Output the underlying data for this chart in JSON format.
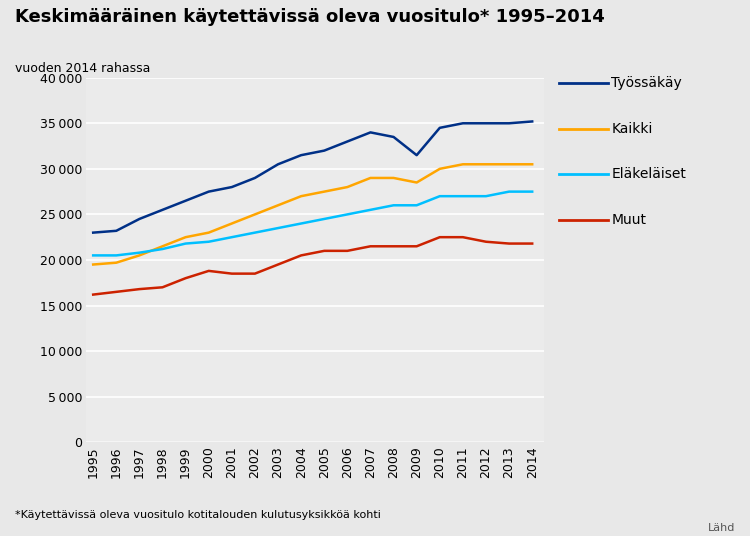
{
  "title": "Keskimääräinen käytettävissä oleva vuositulo* 1995–2014",
  "subtitle": "vuoden 2014 rahassa",
  "footnote": "*Käytettävissä oleva vuositulo kotitalouden kulutusyksikköä kohti",
  "source": "Lähd",
  "years": [
    1995,
    1996,
    1997,
    1998,
    1999,
    2000,
    2001,
    2002,
    2003,
    2004,
    2005,
    2006,
    2007,
    2008,
    2009,
    2010,
    2011,
    2012,
    2013,
    2014
  ],
  "series": [
    {
      "name": "Työssäkäy",
      "color": "#003087",
      "values": [
        23000,
        23200,
        24500,
        25500,
        26500,
        27500,
        28000,
        29000,
        30500,
        31500,
        32000,
        33000,
        34000,
        33500,
        31500,
        34500,
        35000,
        35000,
        35000,
        35200
      ]
    },
    {
      "name": "Kaikki",
      "color": "#FFA500",
      "values": [
        19500,
        19700,
        20500,
        21500,
        22500,
        23000,
        24000,
        25000,
        26000,
        27000,
        27500,
        28000,
        29000,
        29000,
        28500,
        30000,
        30500,
        30500,
        30500,
        30500
      ]
    },
    {
      "name": "Eläkeläiset",
      "color": "#00BFFF",
      "values": [
        20500,
        20500,
        20800,
        21200,
        21800,
        22000,
        22500,
        23000,
        23500,
        24000,
        24500,
        25000,
        25500,
        26000,
        26000,
        27000,
        27000,
        27000,
        27500,
        27500
      ]
    },
    {
      "name": "Muut",
      "color": "#CC2200",
      "values": [
        16200,
        16500,
        16800,
        17000,
        18000,
        18800,
        18500,
        18500,
        19500,
        20500,
        21000,
        21000,
        21500,
        21500,
        21500,
        22500,
        22500,
        22000,
        21800,
        21800
      ]
    }
  ],
  "ylim": [
    0,
    40000
  ],
  "yticks": [
    0,
    5000,
    10000,
    15000,
    20000,
    25000,
    30000,
    35000,
    40000
  ],
  "background_color": "#E8E8E8",
  "plot_bg_color": "#EBEBEB",
  "grid_color": "#FFFFFF",
  "title_fontsize": 13,
  "subtitle_fontsize": 9,
  "tick_fontsize": 9,
  "legend_fontsize": 10,
  "footnote_fontsize": 8,
  "source_fontsize": 8
}
